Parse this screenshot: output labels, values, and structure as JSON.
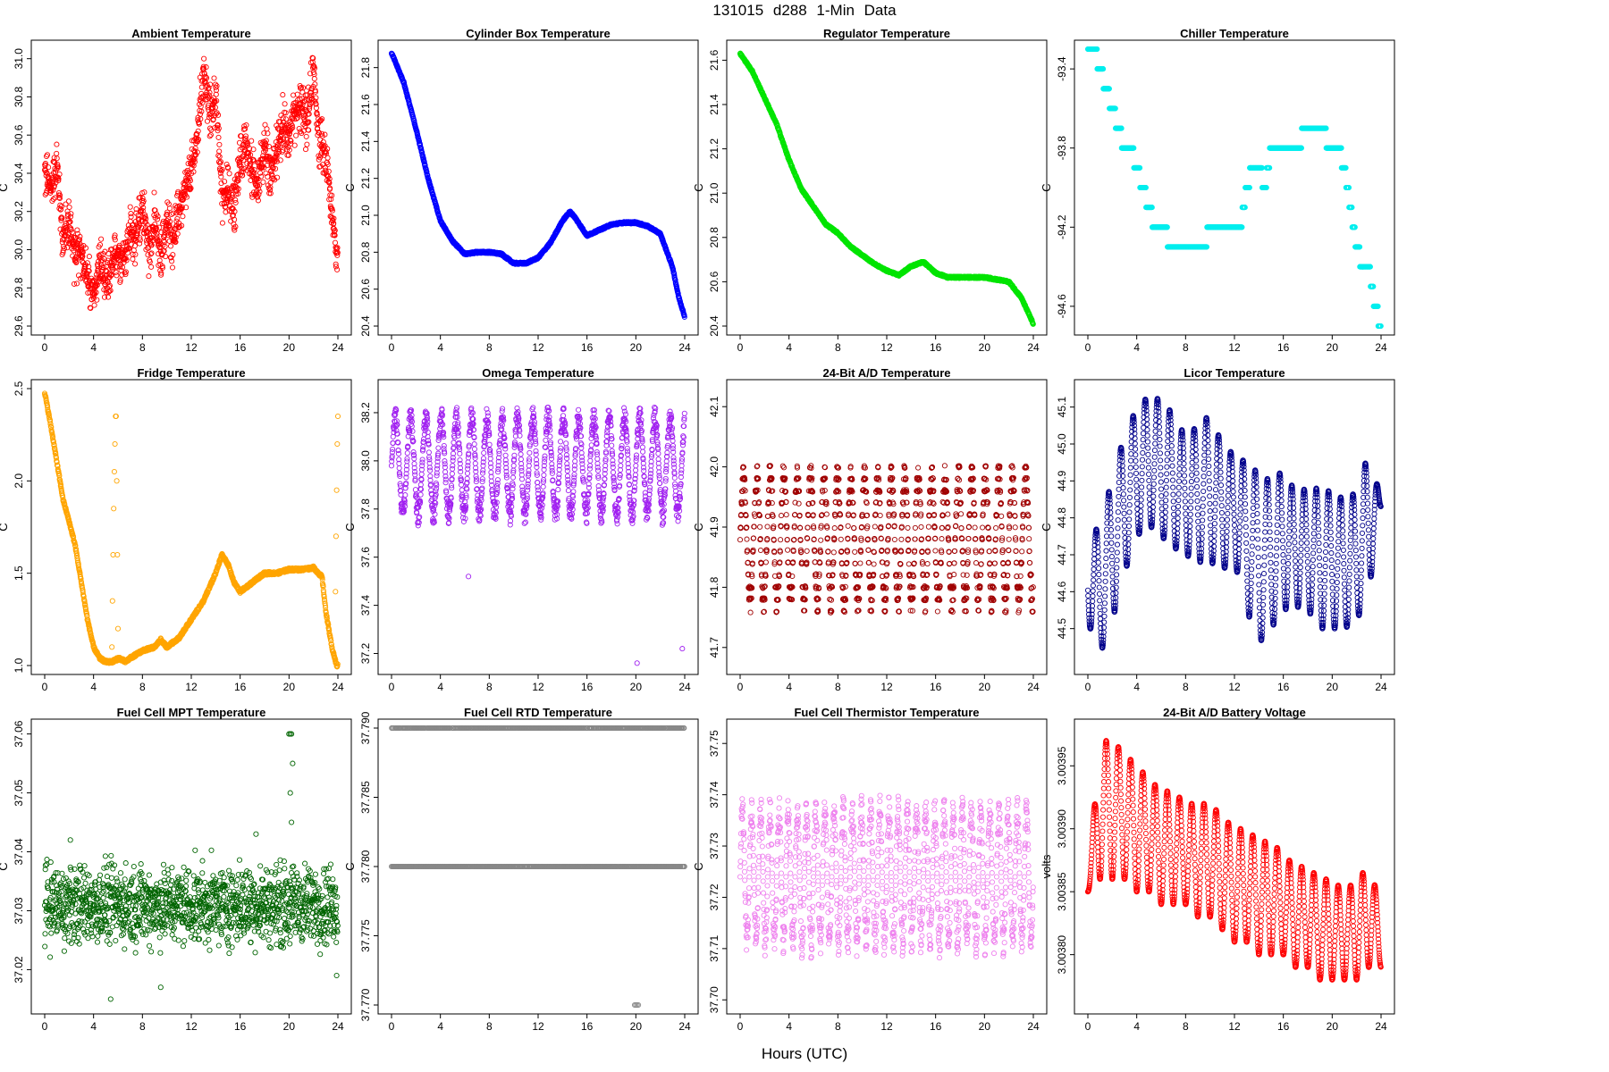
{
  "figure": {
    "title": "131015   d288   1-Min Data",
    "x_axis_label": "Hours (UTC)"
  },
  "chart_data": [
    {
      "type": "scatter",
      "title": "Ambient Temperature",
      "ylabel": "C",
      "xlim": [
        0,
        24
      ],
      "ylim": [
        29.6,
        31.05
      ],
      "xticks": [
        0,
        4,
        8,
        12,
        16,
        20,
        24
      ],
      "yticks": [
        29.6,
        29.8,
        30.0,
        30.2,
        30.4,
        30.6,
        30.8,
        31.0
      ],
      "ytick_labels": [
        "29.6",
        "29.8",
        "30.0",
        "30.2",
        "30.4",
        "30.6",
        "30.8",
        "31.0"
      ],
      "color": "#ff0000",
      "x": [
        0,
        0.5,
        1,
        1.5,
        2,
        2.5,
        3,
        3.5,
        4,
        4.5,
        5,
        5.5,
        6,
        6.5,
        7,
        7.5,
        8,
        8.5,
        9,
        9.5,
        10,
        10.5,
        11,
        11.5,
        12,
        12.5,
        13,
        13.5,
        14,
        14.5,
        15,
        15.5,
        16,
        16.5,
        17,
        17.5,
        18,
        18.5,
        19,
        19.5,
        20,
        20.5,
        21,
        21.5,
        22,
        22.5,
        23,
        23.5,
        24
      ],
      "y": [
        30.4,
        30.32,
        30.45,
        30.05,
        30.15,
        29.95,
        30.0,
        29.85,
        29.75,
        29.95,
        29.8,
        29.9,
        30.0,
        29.95,
        30.1,
        30.05,
        30.25,
        30.0,
        30.15,
        29.95,
        30.15,
        30.05,
        30.2,
        30.3,
        30.4,
        30.6,
        30.95,
        30.7,
        30.8,
        30.3,
        30.3,
        30.2,
        30.5,
        30.55,
        30.4,
        30.35,
        30.55,
        30.4,
        30.5,
        30.65,
        30.6,
        30.7,
        30.75,
        30.65,
        30.95,
        30.55,
        30.5,
        30.2,
        29.95
      ],
      "spread": 0.18
    },
    {
      "type": "scatter",
      "title": "Cylinder Box Temperature",
      "ylabel": "C",
      "xlim": [
        0,
        24
      ],
      "ylim": [
        20.4,
        21.9
      ],
      "xticks": [
        0,
        4,
        8,
        12,
        16,
        20,
        24
      ],
      "yticks": [
        20.4,
        20.6,
        20.8,
        21.0,
        21.2,
        21.4,
        21.6,
        21.8
      ],
      "ytick_labels": [
        "20.4",
        "20.6",
        "20.8",
        "21.0",
        "21.2",
        "21.4",
        "21.6",
        "21.8"
      ],
      "color": "#0000ff",
      "x": [
        0,
        1,
        2,
        3,
        4,
        5,
        6,
        7,
        8,
        9,
        10,
        11,
        12,
        13,
        14,
        14.6,
        15,
        16,
        17,
        18,
        19,
        20,
        21,
        22,
        23,
        23.5,
        24
      ],
      "y": [
        21.88,
        21.72,
        21.47,
        21.2,
        20.97,
        20.86,
        20.79,
        20.8,
        20.8,
        20.79,
        20.74,
        20.74,
        20.77,
        20.85,
        20.97,
        21.02,
        20.99,
        20.89,
        20.92,
        20.95,
        20.96,
        20.96,
        20.94,
        20.9,
        20.72,
        20.56,
        20.45
      ],
      "spread": 0.005
    },
    {
      "type": "scatter",
      "title": "Regulator Temperature",
      "ylabel": "C",
      "xlim": [
        0,
        24
      ],
      "ylim": [
        20.4,
        21.65
      ],
      "xticks": [
        0,
        4,
        8,
        12,
        16,
        20,
        24
      ],
      "yticks": [
        20.4,
        20.6,
        20.8,
        21.0,
        21.2,
        21.4,
        21.6
      ],
      "ytick_labels": [
        "20.4",
        "20.6",
        "20.8",
        "21.0",
        "21.2",
        "21.4",
        "21.6"
      ],
      "color": "#00e400",
      "x": [
        0,
        1,
        2,
        3,
        4,
        5,
        6,
        7,
        8,
        9,
        10,
        11,
        12,
        13,
        14,
        15,
        16,
        17,
        18,
        19,
        20,
        21,
        22,
        23,
        23.5,
        24
      ],
      "y": [
        21.63,
        21.55,
        21.43,
        21.31,
        21.15,
        21.02,
        20.94,
        20.86,
        20.82,
        20.76,
        20.72,
        20.68,
        20.65,
        20.63,
        20.67,
        20.69,
        20.64,
        20.62,
        20.62,
        20.62,
        20.62,
        20.61,
        20.6,
        20.53,
        20.47,
        20.41
      ],
      "spread": 0.004
    },
    {
      "type": "scatter",
      "title": "Chiller Temperature",
      "ylabel": "C",
      "xlim": [
        0,
        24
      ],
      "ylim": [
        -94.7,
        -93.3
      ],
      "xticks": [
        0,
        4,
        8,
        12,
        16,
        20,
        24
      ],
      "yticks": [
        -93.4,
        -93.8,
        -94.2,
        -94.6
      ],
      "ytick_labels": [
        "-93.4",
        "-93.8",
        "-94.2",
        "-94.6"
      ],
      "color": "#00eeee",
      "x": [
        0,
        0.5,
        1,
        1.5,
        2,
        2.5,
        3,
        3.5,
        4,
        4.5,
        5,
        5.5,
        6,
        7,
        8,
        9,
        9.5,
        10,
        11,
        12,
        12.5,
        13,
        13.5,
        14,
        14.5,
        15,
        16,
        17,
        18,
        19,
        20,
        20.5,
        21,
        21.5,
        22,
        22.5,
        23,
        23.5,
        24
      ],
      "y": [
        -93.3,
        -93.3,
        -93.4,
        -93.5,
        -93.6,
        -93.7,
        -93.8,
        -93.8,
        -93.9,
        -94.0,
        -94.1,
        -94.2,
        -94.2,
        -94.3,
        -94.3,
        -94.3,
        -94.3,
        -94.2,
        -94.2,
        -94.2,
        -94.2,
        -94.0,
        -93.9,
        -93.9,
        -94.0,
        -93.8,
        -93.8,
        -93.8,
        -93.7,
        -93.7,
        -93.8,
        -93.8,
        -93.9,
        -94.1,
        -94.3,
        -94.4,
        -94.4,
        -94.6,
        -94.7
      ],
      "spread": 0,
      "step": 0.1
    },
    {
      "type": "scatter",
      "title": "Fridge Temperature",
      "ylabel": "C",
      "xlim": [
        0,
        24
      ],
      "ylim": [
        1.0,
        2.5
      ],
      "xticks": [
        0,
        4,
        8,
        12,
        16,
        20,
        24
      ],
      "yticks": [
        1.0,
        1.5,
        2.0,
        2.5
      ],
      "ytick_labels": [
        "1.0",
        "1.5",
        "2.0",
        "2.5"
      ],
      "color": "#ffa500",
      "x": [
        0,
        0.5,
        1,
        1.5,
        2,
        2.5,
        3,
        3.5,
        4,
        4.5,
        5,
        5.5,
        6.1,
        6.6,
        7,
        8,
        9,
        9.5,
        10,
        11,
        12,
        13,
        14,
        14.5,
        15,
        15.5,
        16,
        17,
        18,
        19,
        20,
        21,
        22,
        22.7,
        23,
        23.5,
        23.9
      ],
      "y": [
        2.48,
        2.3,
        2.1,
        1.9,
        1.78,
        1.65,
        1.45,
        1.25,
        1.1,
        1.04,
        1.02,
        1.02,
        1.04,
        1.02,
        1.04,
        1.08,
        1.1,
        1.14,
        1.1,
        1.15,
        1.25,
        1.35,
        1.5,
        1.6,
        1.55,
        1.45,
        1.4,
        1.45,
        1.5,
        1.5,
        1.52,
        1.52,
        1.53,
        1.48,
        1.3,
        1.1,
        1.0
      ],
      "extra_x": [
        5.5,
        5.55,
        5.6,
        5.65,
        5.7,
        5.75,
        5.8,
        5.85,
        5.9,
        5.95,
        6.0,
        23.8,
        23.85,
        23.9,
        23.95,
        24.0
      ],
      "extra_y": [
        1.1,
        1.35,
        1.6,
        1.85,
        2.05,
        2.2,
        2.35,
        2.35,
        2.0,
        1.6,
        1.2,
        1.4,
        1.7,
        1.95,
        2.2,
        2.35
      ],
      "spread": 0.008
    },
    {
      "type": "scatter",
      "title": "Omega Temperature",
      "ylabel": "C",
      "xlim": [
        0,
        24
      ],
      "ylim": [
        37.15,
        38.3
      ],
      "xticks": [
        0,
        4,
        8,
        12,
        16,
        20,
        24
      ],
      "yticks": [
        37.2,
        37.4,
        37.6,
        37.8,
        38.0,
        38.2
      ],
      "ytick_labels": [
        "37.2",
        "37.4",
        "37.6",
        "37.8",
        "38.0",
        "38.2"
      ],
      "color": "#a020f0",
      "osc_center": 37.98,
      "osc_amp": 0.25,
      "osc_period": 1.25,
      "outliers_x": [
        6.3,
        20.1,
        23.8
      ],
      "outliers_y": [
        37.52,
        37.16,
        37.22
      ]
    },
    {
      "type": "scatter",
      "title": "24-Bit A/D Temperature",
      "ylabel": "C",
      "xlim": [
        0,
        24
      ],
      "ylim": [
        41.67,
        42.13
      ],
      "xticks": [
        0,
        4,
        8,
        12,
        16,
        20,
        24
      ],
      "yticks": [
        41.7,
        41.8,
        41.9,
        42.0,
        42.1
      ],
      "ytick_labels": [
        "41.7",
        "41.8",
        "41.9",
        "42.0",
        "42.1"
      ],
      "color": "#a00000",
      "osc_center": 41.88,
      "osc_amp": 0.13,
      "osc_period": 1.1
    },
    {
      "type": "scatter",
      "title": "Licor Temperature",
      "ylabel": "C",
      "xlim": [
        0,
        24
      ],
      "ylim": [
        44.4,
        45.15
      ],
      "xticks": [
        0,
        4,
        8,
        12,
        16,
        20,
        24
      ],
      "yticks": [
        44.5,
        44.6,
        44.7,
        44.8,
        44.9,
        45.0,
        45.1
      ],
      "ytick_labels": [
        "44.5",
        "44.6",
        "44.7",
        "44.8",
        "44.9",
        "45.0",
        "45.1"
      ],
      "color": "#00008b",
      "peak_x": [
        0.2,
        1.0,
        2.0,
        3.0,
        4.0,
        5.0,
        6.0,
        7.0,
        8.0,
        9.0,
        10.0,
        11.0,
        12.0,
        13.0,
        14.0,
        15.0,
        16.0,
        17.0,
        18.0,
        19.0,
        20.0,
        21.0,
        22.0,
        23.0,
        24.0
      ],
      "peak_hi": [
        44.8,
        44.75,
        44.92,
        45.02,
        45.1,
        45.13,
        45.12,
        45.08,
        45.02,
        45.05,
        45.08,
        45.0,
        44.97,
        44.95,
        44.92,
        44.9,
        44.93,
        44.87,
        44.88,
        44.88,
        44.87,
        44.85,
        44.87,
        44.98,
        44.85
      ],
      "peak_lo": [
        44.5,
        44.43,
        44.52,
        44.65,
        44.75,
        44.78,
        44.75,
        44.72,
        44.7,
        44.68,
        44.68,
        44.66,
        44.68,
        44.55,
        44.46,
        44.5,
        44.55,
        44.56,
        44.55,
        44.5,
        44.5,
        44.5,
        44.52,
        44.6,
        44.82
      ]
    },
    {
      "type": "scatter",
      "title": "Fuel Cell MPT Temperature",
      "ylabel": "C",
      "xlim": [
        0,
        24
      ],
      "ylim": [
        37.014,
        37.061
      ],
      "xticks": [
        0,
        4,
        8,
        12,
        16,
        20,
        24
      ],
      "yticks": [
        37.02,
        37.03,
        37.04,
        37.05,
        37.06
      ],
      "ytick_labels": [
        "37.02",
        "37.03",
        "37.04",
        "37.05",
        "37.06"
      ],
      "color": "#006400",
      "noise_center": 37.031,
      "noise_amp": 0.006,
      "outliers_x": [
        20.0,
        20.1,
        20.2,
        20.3,
        20.1,
        20.2,
        17.3,
        5.4,
        9.5,
        2.1,
        23.9
      ],
      "outliers_y": [
        37.06,
        37.06,
        37.06,
        37.055,
        37.05,
        37.045,
        37.043,
        37.015,
        37.017,
        37.042,
        37.019
      ]
    },
    {
      "type": "scatter",
      "title": "Fuel Cell RTD Temperature",
      "ylabel": "C",
      "xlim": [
        0,
        24
      ],
      "ylim": [
        37.77,
        37.79
      ],
      "xticks": [
        0,
        4,
        8,
        12,
        16,
        20,
        24
      ],
      "yticks": [
        37.77,
        37.775,
        37.78,
        37.785,
        37.79
      ],
      "ytick_labels": [
        "37.770",
        "37.775",
        "37.780",
        "37.785",
        "37.790"
      ],
      "color": "#888888",
      "levels": [
        37.78,
        37.79
      ],
      "outliers_x": [
        19.9,
        20.0,
        20.1,
        20.2
      ],
      "outliers_y": [
        37.77,
        37.77,
        37.77,
        37.77
      ]
    },
    {
      "type": "scatter",
      "title": "Fuel Cell Thermistor Temperature",
      "ylabel": "C",
      "xlim": [
        0,
        24
      ],
      "ylim": [
        37.699,
        37.753
      ],
      "xticks": [
        0,
        4,
        8,
        12,
        16,
        20,
        24
      ],
      "yticks": [
        37.7,
        37.71,
        37.72,
        37.73,
        37.74,
        37.75
      ],
      "ytick_labels": [
        "37.70",
        "37.71",
        "37.72",
        "37.73",
        "37.74",
        "37.75"
      ],
      "color": "#ee82ee",
      "osc_center": 37.724,
      "osc_amp": 0.016,
      "osc_period": 0.75
    },
    {
      "type": "scatter",
      "title": "24-Bit A/D Battery Voltage",
      "ylabel": "volts",
      "xlim": [
        0,
        24
      ],
      "ylim": [
        3.00376,
        3.00398
      ],
      "xticks": [
        0,
        4,
        8,
        12,
        16,
        20,
        24
      ],
      "yticks": [
        3.0038,
        3.00385,
        3.0039,
        3.00395
      ],
      "ytick_labels": [
        "3.00380",
        "3.00385",
        "3.00390",
        "3.00395"
      ],
      "color": "#ff0000",
      "peak_x": [
        0,
        1.0,
        2.0,
        3.0,
        4.0,
        5.0,
        6.0,
        7.0,
        8.0,
        9.0,
        10.0,
        11.0,
        12.0,
        13.0,
        14.0,
        15.0,
        16.0,
        17.0,
        18.0,
        19.0,
        20.0,
        21.0,
        22.0,
        23.0,
        24.0
      ],
      "peak_hi": [
        3.00386,
        3.00397,
        3.00397,
        3.00396,
        3.00395,
        3.00394,
        3.00393,
        3.00393,
        3.00392,
        3.00392,
        3.00392,
        3.00391,
        3.0039,
        3.0039,
        3.00389,
        3.00389,
        3.00388,
        3.00387,
        3.00387,
        3.00386,
        3.00386,
        3.00385,
        3.00386,
        3.00387,
        3.00384
      ],
      "peak_lo": [
        3.00385,
        3.00386,
        3.00386,
        3.00386,
        3.00385,
        3.00385,
        3.00384,
        3.00384,
        3.00384,
        3.00383,
        3.00383,
        3.00382,
        3.00381,
        3.00381,
        3.0038,
        3.0038,
        3.0038,
        3.00379,
        3.00379,
        3.00378,
        3.00378,
        3.00378,
        3.00378,
        3.00379,
        3.00379
      ]
    }
  ]
}
